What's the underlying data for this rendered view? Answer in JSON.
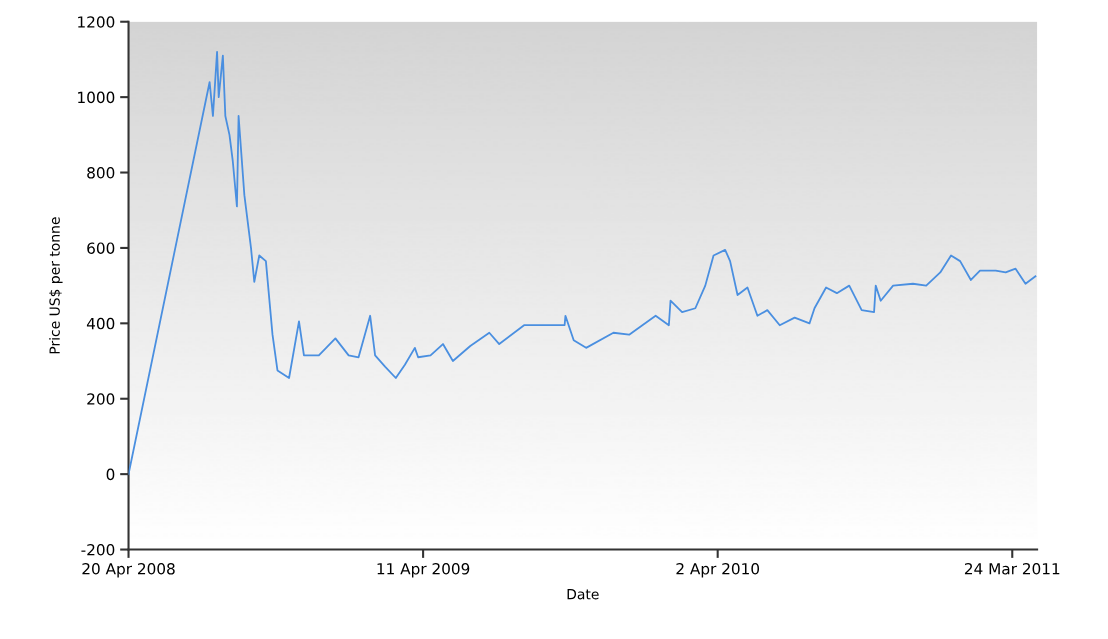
{
  "chart_data": {
    "type": "line",
    "xlabel": "Date",
    "ylabel": "Price US$ per tonne",
    "x": [
      "2008-04-20",
      "2008-07-27",
      "2008-07-31",
      "2008-08-05",
      "2008-08-07",
      "2008-08-12",
      "2008-08-15",
      "2008-08-20",
      "2008-08-24",
      "2008-08-29",
      "2008-08-31",
      "2008-09-07",
      "2008-09-15",
      "2008-09-19",
      "2008-09-25",
      "2008-10-03",
      "2008-10-11",
      "2008-10-17",
      "2008-10-31",
      "2008-11-12",
      "2008-11-18",
      "2008-12-06",
      "2008-12-26",
      "2009-01-11",
      "2009-01-23",
      "2009-02-06",
      "2009-02-12",
      "2009-02-24",
      "2009-03-09",
      "2009-03-20",
      "2009-04-01",
      "2009-04-05",
      "2009-04-20",
      "2009-05-05",
      "2009-05-17",
      "2009-06-07",
      "2009-06-30",
      "2009-07-12",
      "2009-08-11",
      "2009-09-11",
      "2009-09-29",
      "2009-09-30",
      "2009-10-10",
      "2009-10-25",
      "2009-11-27",
      "2009-12-16",
      "2010-01-17",
      "2010-02-02",
      "2010-02-04",
      "2010-02-18",
      "2010-03-06",
      "2010-03-18",
      "2010-03-28",
      "2010-04-11",
      "2010-04-17",
      "2010-04-26",
      "2010-05-08",
      "2010-05-20",
      "2010-06-01",
      "2010-06-16",
      "2010-07-04",
      "2010-07-22",
      "2010-07-28",
      "2010-08-11",
      "2010-08-24",
      "2010-09-08",
      "2010-09-23",
      "2010-10-08",
      "2010-10-10",
      "2010-10-16",
      "2010-10-31",
      "2010-11-24",
      "2010-12-10",
      "2010-12-27",
      "2011-01-09",
      "2011-01-20",
      "2011-02-02",
      "2011-02-13",
      "2011-03-04",
      "2011-03-16",
      "2011-03-28",
      "2011-04-09",
      "2011-04-21"
    ],
    "series": [
      {
        "color": "#4a8fe0",
        "values": [
          0,
          1040,
          950,
          1120,
          1000,
          1110,
          950,
          900,
          830,
          710,
          950,
          740,
          600,
          510,
          580,
          565,
          370,
          275,
          255,
          405,
          315,
          315,
          360,
          315,
          310,
          420,
          315,
          285,
          255,
          290,
          335,
          310,
          315,
          345,
          300,
          340,
          375,
          345,
          395,
          395,
          395,
          420,
          355,
          335,
          375,
          370,
          420,
          395,
          460,
          430,
          440,
          500,
          580,
          595,
          565,
          475,
          495,
          420,
          435,
          395,
          415,
          400,
          440,
          495,
          480,
          500,
          435,
          430,
          500,
          460,
          500,
          505,
          500,
          535,
          580,
          565,
          515,
          540,
          540,
          535,
          545,
          505,
          525
        ]
      }
    ],
    "xlim": [
      "2008-04-20",
      "2011-04-23"
    ],
    "xticks": [
      {
        "value": "2008-04-20",
        "label": "20 Apr 2008"
      },
      {
        "value": "2009-04-11",
        "label": "11 Apr 2009"
      },
      {
        "value": "2010-04-02",
        "label": "2 Apr 2010"
      },
      {
        "value": "2011-03-24",
        "label": "24 Mar 2011"
      }
    ],
    "ylim": [
      -200,
      1200
    ],
    "yticks": [
      -200,
      0,
      200,
      400,
      600,
      800,
      1000,
      1200
    ],
    "marker": "none",
    "line_style": "solid"
  }
}
